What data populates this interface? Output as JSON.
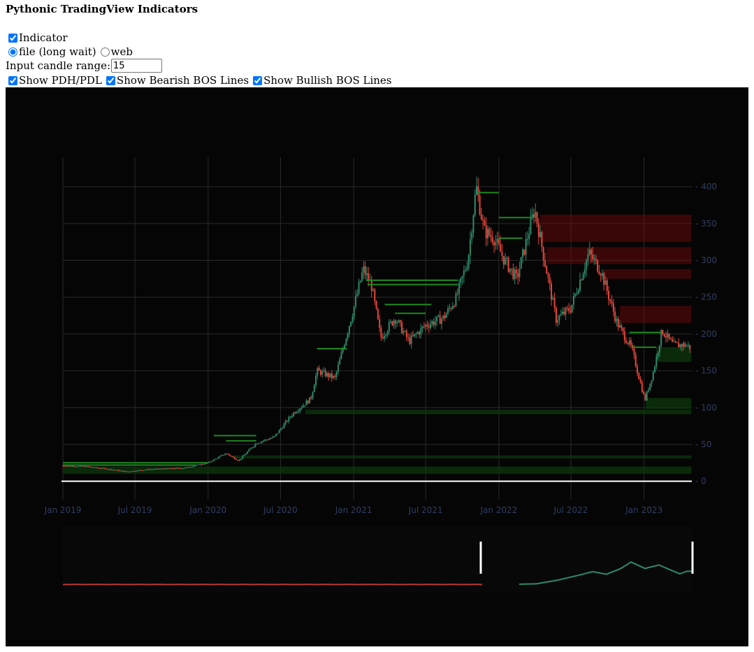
{
  "page": {
    "title": "Pythonic TradingView Indicators"
  },
  "controls": {
    "indicator": {
      "label": "Indicator",
      "checked": true
    },
    "source": {
      "options": [
        {
          "label": "file (long wait)",
          "checked": true
        },
        {
          "label": "web",
          "checked": false
        }
      ]
    },
    "candle_range": {
      "label": "Input candle range:",
      "value": "15"
    },
    "toggles": [
      {
        "label": "Show PDH/PDL",
        "checked": true
      },
      {
        "label": "Show Bearish BOS Lines",
        "checked": true
      },
      {
        "label": "Show Bullish BOS Lines",
        "checked": true
      }
    ]
  },
  "colors": {
    "background": "#050505",
    "grid": "#2a2a2a",
    "axis_text": "#2f3e63",
    "bullish": "#2e8b6a",
    "bearish": "#e8453c",
    "bos_line": "#1f8a1f",
    "bearish_zone": "#7a0a0a",
    "bullish_zone": "#0d3a0d"
  },
  "chart_data": {
    "type": "candlestick",
    "title": "",
    "xlabel": "",
    "ylabel": "",
    "x_ticks": [
      "Jan 2019",
      "Jul 2019",
      "Jan 2020",
      "Jul 2020",
      "Jan 2021",
      "Jul 2021",
      "Jan 2022",
      "Jul 2022",
      "Jan 2023"
    ],
    "y_ticks": [
      0,
      50,
      100,
      150,
      200,
      250,
      300,
      350,
      400
    ],
    "ylim": [
      -25,
      440
    ],
    "xlim": [
      "2019-01-01",
      "2023-05-01"
    ],
    "price_path": [
      [
        "2019-01-01",
        21
      ],
      [
        "2019-03-01",
        20
      ],
      [
        "2019-05-01",
        16
      ],
      [
        "2019-06-10",
        13
      ],
      [
        "2019-08-01",
        16
      ],
      [
        "2019-11-01",
        18
      ],
      [
        "2020-01-01",
        25
      ],
      [
        "2020-02-15",
        38
      ],
      [
        "2020-03-18",
        28
      ],
      [
        "2020-05-01",
        52
      ],
      [
        "2020-06-15",
        60
      ],
      [
        "2020-08-01",
        92
      ],
      [
        "2020-09-15",
        112
      ],
      [
        "2020-10-01",
        150
      ],
      [
        "2020-11-15",
        140
      ],
      [
        "2021-01-01",
        235
      ],
      [
        "2021-01-25",
        288
      ],
      [
        "2021-02-15",
        265
      ],
      [
        "2021-03-10",
        195
      ],
      [
        "2021-04-15",
        222
      ],
      [
        "2021-05-20",
        190
      ],
      [
        "2021-07-01",
        212
      ],
      [
        "2021-08-15",
        222
      ],
      [
        "2021-09-15",
        248
      ],
      [
        "2021-10-15",
        300
      ],
      [
        "2021-11-05",
        400
      ],
      [
        "2021-11-25",
        340
      ],
      [
        "2021-12-20",
        330
      ],
      [
        "2022-01-15",
        300
      ],
      [
        "2022-02-15",
        275
      ],
      [
        "2022-04-01",
        370
      ],
      [
        "2022-05-01",
        285
      ],
      [
        "2022-05-25",
        220
      ],
      [
        "2022-07-01",
        235
      ],
      [
        "2022-08-15",
        310
      ],
      [
        "2022-09-15",
        285
      ],
      [
        "2022-10-25",
        215
      ],
      [
        "2022-12-01",
        180
      ],
      [
        "2023-01-03",
        110
      ],
      [
        "2023-01-25",
        150
      ],
      [
        "2023-02-15",
        205
      ],
      [
        "2023-03-15",
        185
      ],
      [
        "2023-04-15",
        185
      ],
      [
        "2023-04-28",
        182
      ]
    ],
    "bos_lines_bullish": [
      {
        "from": "2019-01-01",
        "to": "2020-01-01",
        "y": 25
      },
      {
        "from": "2019-01-01",
        "to": "2019-12-01",
        "y": 22
      },
      {
        "from": "2020-01-15",
        "to": "2020-05-01",
        "y": 62
      },
      {
        "from": "2020-02-15",
        "to": "2020-05-01",
        "y": 55
      },
      {
        "from": "2020-10-01",
        "to": "2020-12-15",
        "y": 180
      },
      {
        "from": "2021-02-01",
        "to": "2021-09-20",
        "y": 273
      },
      {
        "from": "2021-02-05",
        "to": "2021-09-20",
        "y": 267
      },
      {
        "from": "2021-03-20",
        "to": "2021-07-15",
        "y": 240
      },
      {
        "from": "2021-04-15",
        "to": "2021-07-01",
        "y": 228
      },
      {
        "from": "2021-11-10",
        "to": "2022-01-01",
        "y": 392
      },
      {
        "from": "2022-01-01",
        "to": "2022-03-25",
        "y": 358
      },
      {
        "from": "2022-01-01",
        "to": "2022-03-01",
        "y": 330
      },
      {
        "from": "2022-11-25",
        "to": "2023-02-15",
        "y": 202
      },
      {
        "from": "2022-12-01",
        "to": "2023-02-01",
        "y": 182
      }
    ],
    "zones_bearish": [
      {
        "from": "2022-04-15",
        "to": "2023-04-30",
        "y0": 325,
        "y1": 362
      },
      {
        "from": "2022-05-01",
        "to": "2023-04-30",
        "y0": 295,
        "y1": 318
      },
      {
        "from": "2022-09-20",
        "to": "2023-04-30",
        "y0": 275,
        "y1": 288
      },
      {
        "from": "2022-11-01",
        "to": "2023-04-30",
        "y0": 215,
        "y1": 238
      }
    ],
    "zones_bullish": [
      {
        "from": "2023-02-01",
        "to": "2023-04-30",
        "y0": 162,
        "y1": 182
      },
      {
        "from": "2023-01-05",
        "to": "2023-04-30",
        "y0": 98,
        "y1": 113
      },
      {
        "from": "2020-09-01",
        "to": "2023-04-30",
        "y0": 91,
        "y1": 97
      },
      {
        "from": "2020-03-01",
        "to": "2023-04-30",
        "y0": 31,
        "y1": 35
      },
      {
        "from": "2019-01-01",
        "to": "2023-04-30",
        "y0": 10,
        "y1": 20
      }
    ],
    "zero_line": 0,
    "range_slider": {
      "shows_overview": true,
      "window": [
        "2021-11-01",
        "2023-05-01"
      ]
    }
  }
}
